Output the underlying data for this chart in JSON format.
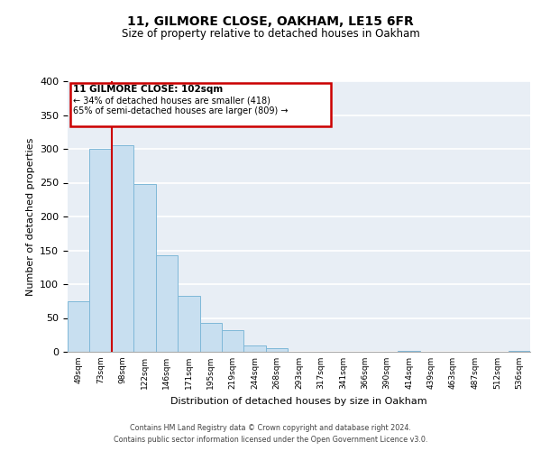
{
  "title": "11, GILMORE CLOSE, OAKHAM, LE15 6FR",
  "subtitle": "Size of property relative to detached houses in Oakham",
  "xlabel": "Distribution of detached houses by size in Oakham",
  "ylabel": "Number of detached properties",
  "bin_labels": [
    "49sqm",
    "73sqm",
    "98sqm",
    "122sqm",
    "146sqm",
    "171sqm",
    "195sqm",
    "219sqm",
    "244sqm",
    "268sqm",
    "293sqm",
    "317sqm",
    "341sqm",
    "366sqm",
    "390sqm",
    "414sqm",
    "439sqm",
    "463sqm",
    "487sqm",
    "512sqm",
    "536sqm"
  ],
  "bar_heights": [
    75,
    300,
    305,
    248,
    143,
    83,
    43,
    32,
    10,
    6,
    0,
    0,
    0,
    0,
    0,
    2,
    0,
    0,
    0,
    0,
    2
  ],
  "bar_color": "#c8dff0",
  "bar_edge_color": "#7fb8d8",
  "property_line_x": 2,
  "property_line_color": "#cc0000",
  "ylim": [
    0,
    400
  ],
  "yticks": [
    0,
    50,
    100,
    150,
    200,
    250,
    300,
    350,
    400
  ],
  "annotation_title": "11 GILMORE CLOSE: 102sqm",
  "annotation_line1": "← 34% of detached houses are smaller (418)",
  "annotation_line2": "65% of semi-detached houses are larger (809) →",
  "annotation_box_facecolor": "#ffffff",
  "annotation_box_edgecolor": "#cc0000",
  "footer_line1": "Contains HM Land Registry data © Crown copyright and database right 2024.",
  "footer_line2": "Contains public sector information licensed under the Open Government Licence v3.0.",
  "fig_facecolor": "#ffffff",
  "axes_facecolor": "#e8eef5",
  "grid_color": "#ffffff",
  "spine_color": "#aaaaaa"
}
